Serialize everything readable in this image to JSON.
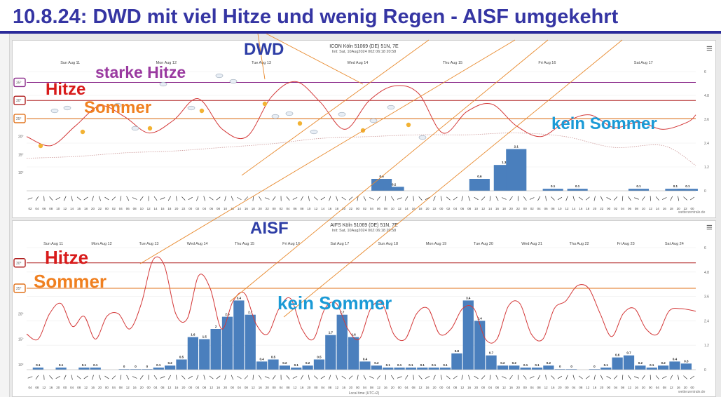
{
  "headline": "10.8.24: DWD mit viel Hitze und wenig Regen - AISF umgekehrt",
  "colors": {
    "headline": "#3535a3",
    "hitze": "#d81b1b",
    "sommer": "#f08020",
    "starke_hitze": "#9a3aa0",
    "kein_sommer": "#1a9ad6",
    "bar": "#4a7fbd",
    "line": "#d43a3a",
    "dwd_label": "#2e3ea6"
  },
  "annotations": {
    "dwd": "DWD",
    "aisf": "AISF",
    "starke_hitze": "starke Hitze",
    "hitze": "Hitze",
    "sommer": "Sommer",
    "kein_sommer": "kein Sommer",
    "hitze2": "Hitze",
    "sommer2": "Sommer",
    "kein_sommer2": "kein Sommer"
  },
  "chart_data": [
    {
      "type": "line",
      "title": "ICON Köln 51069 (DE) 51N, 7E",
      "subtitle": "Init: Sat, 10Aug2024 00Z  06:18  20:58",
      "credit": "wetterzentrale.de",
      "day_labels": [
        "Sun Aug 11",
        "Mon Aug 12",
        "Tue Aug 13",
        "Wed Aug 14",
        "Thu Aug 15",
        "Fri Aug 16",
        "Sat Aug 17"
      ],
      "y_ticks_left": [
        "10°",
        "15°",
        "20°",
        "25°",
        "30°",
        "35°"
      ],
      "y_ticks_right": [
        "0",
        "1.2",
        "2.4",
        "3.6",
        "4.8",
        "6"
      ],
      "thresholds": [
        {
          "name": "starke Hitze",
          "value": 35
        },
        {
          "name": "Hitze",
          "value": 30
        },
        {
          "name": "Sommer",
          "value": 25
        }
      ],
      "ylim": [
        5,
        38
      ],
      "xlim": [
        0,
        164
      ],
      "series": [
        {
          "values": [
            [
              0,
              20
            ],
            [
              6,
              17.5
            ],
            [
              12,
              23
            ],
            [
              18,
              28.5
            ],
            [
              24,
              25.5
            ],
            [
              30,
              21
            ],
            [
              36,
              24.5
            ],
            [
              42,
              30.5
            ],
            [
              48,
              22
            ],
            [
              54,
              20
            ],
            [
              60,
              31
            ],
            [
              66,
              35.2
            ],
            [
              72,
              29.5
            ],
            [
              78,
              22
            ],
            [
              84,
              30
            ],
            [
              90,
              34
            ],
            [
              96,
              32
            ],
            [
              102,
              21
            ],
            [
              108,
              27
            ],
            [
              114,
              29
            ],
            [
              120,
              23
            ],
            [
              126,
              20
            ],
            [
              132,
              24
            ],
            [
              138,
              26
            ],
            [
              144,
              22.5
            ],
            [
              150,
              24
            ],
            [
              156,
              22
            ],
            [
              162,
              24
            ],
            [
              164,
              26
            ]
          ]
        },
        {
          "dotted": true,
          "values": [
            [
              0,
              14
            ],
            [
              12,
              14.5
            ],
            [
              24,
              15.5
            ],
            [
              36,
              16
            ],
            [
              48,
              17
            ],
            [
              60,
              18
            ],
            [
              72,
              19.5
            ],
            [
              84,
              20
            ],
            [
              96,
              20.5
            ],
            [
              108,
              20.5
            ],
            [
              120,
              21
            ],
            [
              132,
              20
            ],
            [
              144,
              17
            ],
            [
              156,
              17.5
            ],
            [
              164,
              12
            ]
          ]
        }
      ],
      "bars": [
        {
          "x": 87,
          "value": 0.6
        },
        {
          "x": 90,
          "value": 0.2
        },
        {
          "x": 111,
          "value": 0.6
        },
        {
          "x": 117,
          "value": 1.3
        },
        {
          "x": 120,
          "value": 2.1
        },
        {
          "x": 129,
          "value": 0.1
        },
        {
          "x": 135,
          "value": 0.1
        },
        {
          "x": 150,
          "value": 0.1
        },
        {
          "x": 159,
          "value": 0.1
        },
        {
          "x": 162,
          "value": 0.1
        }
      ],
      "hour_ticks": [
        "02",
        "04",
        "06",
        "08",
        "10",
        "12",
        "14",
        "16",
        "18",
        "20",
        "22",
        "00"
      ]
    },
    {
      "type": "line",
      "title": "AIFS Köln 51069 (DE) 51N, 7E",
      "subtitle": "Init: Sat, 10Aug2024 00Z  06:18  20:58",
      "credit": "wetterzentrale.de",
      "x_axis_title": "Local time (UTC+2)",
      "day_labels": [
        "Sun Aug 11",
        "Mon Aug 12",
        "Tue Aug 13",
        "Wed Aug 14",
        "Thu Aug 15",
        "Fri Aug 16",
        "Sat Aug 17",
        "Sun Aug 18",
        "Mon Aug 19",
        "Tue Aug 20",
        "Wed Aug 21",
        "Thu Aug 22",
        "Fri Aug 23",
        "Sat Aug 24"
      ],
      "y_ticks_left": [
        "10°",
        "15°",
        "20°",
        "25°",
        "30°"
      ],
      "y_ticks_right": [
        "0",
        "1.2",
        "2.4",
        "3.6",
        "4.8",
        "6"
      ],
      "thresholds": [
        {
          "name": "Hitze",
          "value": 30
        },
        {
          "name": "Sommer",
          "value": 25
        }
      ],
      "ylim": [
        9,
        33
      ],
      "xlim": [
        0,
        350
      ],
      "series": [
        {
          "values": [
            [
              0,
              16
            ],
            [
              6,
              15
            ],
            [
              12,
              20
            ],
            [
              18,
              22
            ],
            [
              24,
              17.5
            ],
            [
              30,
              19.5
            ],
            [
              36,
              15
            ],
            [
              42,
              19.5
            ],
            [
              48,
              20
            ],
            [
              54,
              17
            ],
            [
              60,
              22
            ],
            [
              66,
              30.5
            ],
            [
              72,
              29.5
            ],
            [
              78,
              20
            ],
            [
              84,
              19
            ],
            [
              90,
              27.5
            ],
            [
              96,
              25
            ],
            [
              102,
              17
            ],
            [
              108,
              22.5
            ],
            [
              114,
              24
            ],
            [
              120,
              18
            ],
            [
              126,
              16
            ],
            [
              132,
              21
            ],
            [
              138,
              23
            ],
            [
              144,
              17
            ],
            [
              150,
              15
            ],
            [
              156,
              21
            ],
            [
              162,
              22
            ],
            [
              168,
              17
            ],
            [
              174,
              15
            ],
            [
              180,
              21
            ],
            [
              186,
              22
            ],
            [
              192,
              16
            ],
            [
              198,
              15
            ],
            [
              204,
              20
            ],
            [
              210,
              21
            ],
            [
              216,
              16
            ],
            [
              222,
              17
            ],
            [
              228,
              21
            ],
            [
              234,
              21
            ],
            [
              240,
              15
            ],
            [
              246,
              15
            ],
            [
              252,
              21.5
            ],
            [
              258,
              22
            ],
            [
              264,
              16
            ],
            [
              270,
              15
            ],
            [
              276,
              21
            ],
            [
              282,
              22.5
            ],
            [
              288,
              25.5
            ],
            [
              294,
              25
            ],
            [
              300,
              20
            ],
            [
              306,
              15.5
            ],
            [
              312,
              20
            ],
            [
              318,
              21
            ],
            [
              324,
              17
            ],
            [
              330,
              16
            ],
            [
              336,
              20.5
            ],
            [
              342,
              21
            ],
            [
              350,
              20.5
            ]
          ]
        }
      ],
      "bars": [
        {
          "x": 6,
          "value": 0.1
        },
        {
          "x": 18,
          "value": 0.1
        },
        {
          "x": 30,
          "value": 0.1
        },
        {
          "x": 36,
          "value": 0.1
        },
        {
          "x": 51,
          "value": 0
        },
        {
          "x": 57,
          "value": 0
        },
        {
          "x": 63,
          "value": 0
        },
        {
          "x": 69,
          "value": 0.1
        },
        {
          "x": 75,
          "value": 0.2
        },
        {
          "x": 81,
          "value": 0.5
        },
        {
          "x": 87,
          "value": 1.6
        },
        {
          "x": 93,
          "value": 1.5
        },
        {
          "x": 99,
          "value": 2.0
        },
        {
          "x": 105,
          "value": 2.6
        },
        {
          "x": 111,
          "value": 3.4
        },
        {
          "x": 117,
          "value": 2.7
        },
        {
          "x": 123,
          "value": 0.4
        },
        {
          "x": 129,
          "value": 0.5
        },
        {
          "x": 135,
          "value": 0.2
        },
        {
          "x": 141,
          "value": 0.1
        },
        {
          "x": 147,
          "value": 0.2
        },
        {
          "x": 153,
          "value": 0.5
        },
        {
          "x": 159,
          "value": 1.7
        },
        {
          "x": 165,
          "value": 2.7
        },
        {
          "x": 171,
          "value": 1.6
        },
        {
          "x": 177,
          "value": 0.4
        },
        {
          "x": 183,
          "value": 0.2
        },
        {
          "x": 189,
          "value": 0.1
        },
        {
          "x": 195,
          "value": 0.1
        },
        {
          "x": 201,
          "value": 0.1
        },
        {
          "x": 207,
          "value": 0.1
        },
        {
          "x": 213,
          "value": 0.1
        },
        {
          "x": 219,
          "value": 0.1
        },
        {
          "x": 225,
          "value": 0.8
        },
        {
          "x": 231,
          "value": 3.4
        },
        {
          "x": 237,
          "value": 2.4
        },
        {
          "x": 243,
          "value": 0.7
        },
        {
          "x": 249,
          "value": 0.2
        },
        {
          "x": 255,
          "value": 0.2
        },
        {
          "x": 261,
          "value": 0.1
        },
        {
          "x": 267,
          "value": 0.1
        },
        {
          "x": 273,
          "value": 0.2
        },
        {
          "x": 279,
          "value": 0
        },
        {
          "x": 285,
          "value": 0
        },
        {
          "x": 297,
          "value": 0
        },
        {
          "x": 303,
          "value": 0.1
        },
        {
          "x": 309,
          "value": 0.6
        },
        {
          "x": 315,
          "value": 0.7
        },
        {
          "x": 321,
          "value": 0.2
        },
        {
          "x": 327,
          "value": 0.1
        },
        {
          "x": 333,
          "value": 0.2
        },
        {
          "x": 339,
          "value": 0.4
        },
        {
          "x": 345,
          "value": 0.3
        }
      ],
      "hour_ticks": [
        "04",
        "08",
        "12",
        "16",
        "20",
        "00"
      ]
    }
  ]
}
